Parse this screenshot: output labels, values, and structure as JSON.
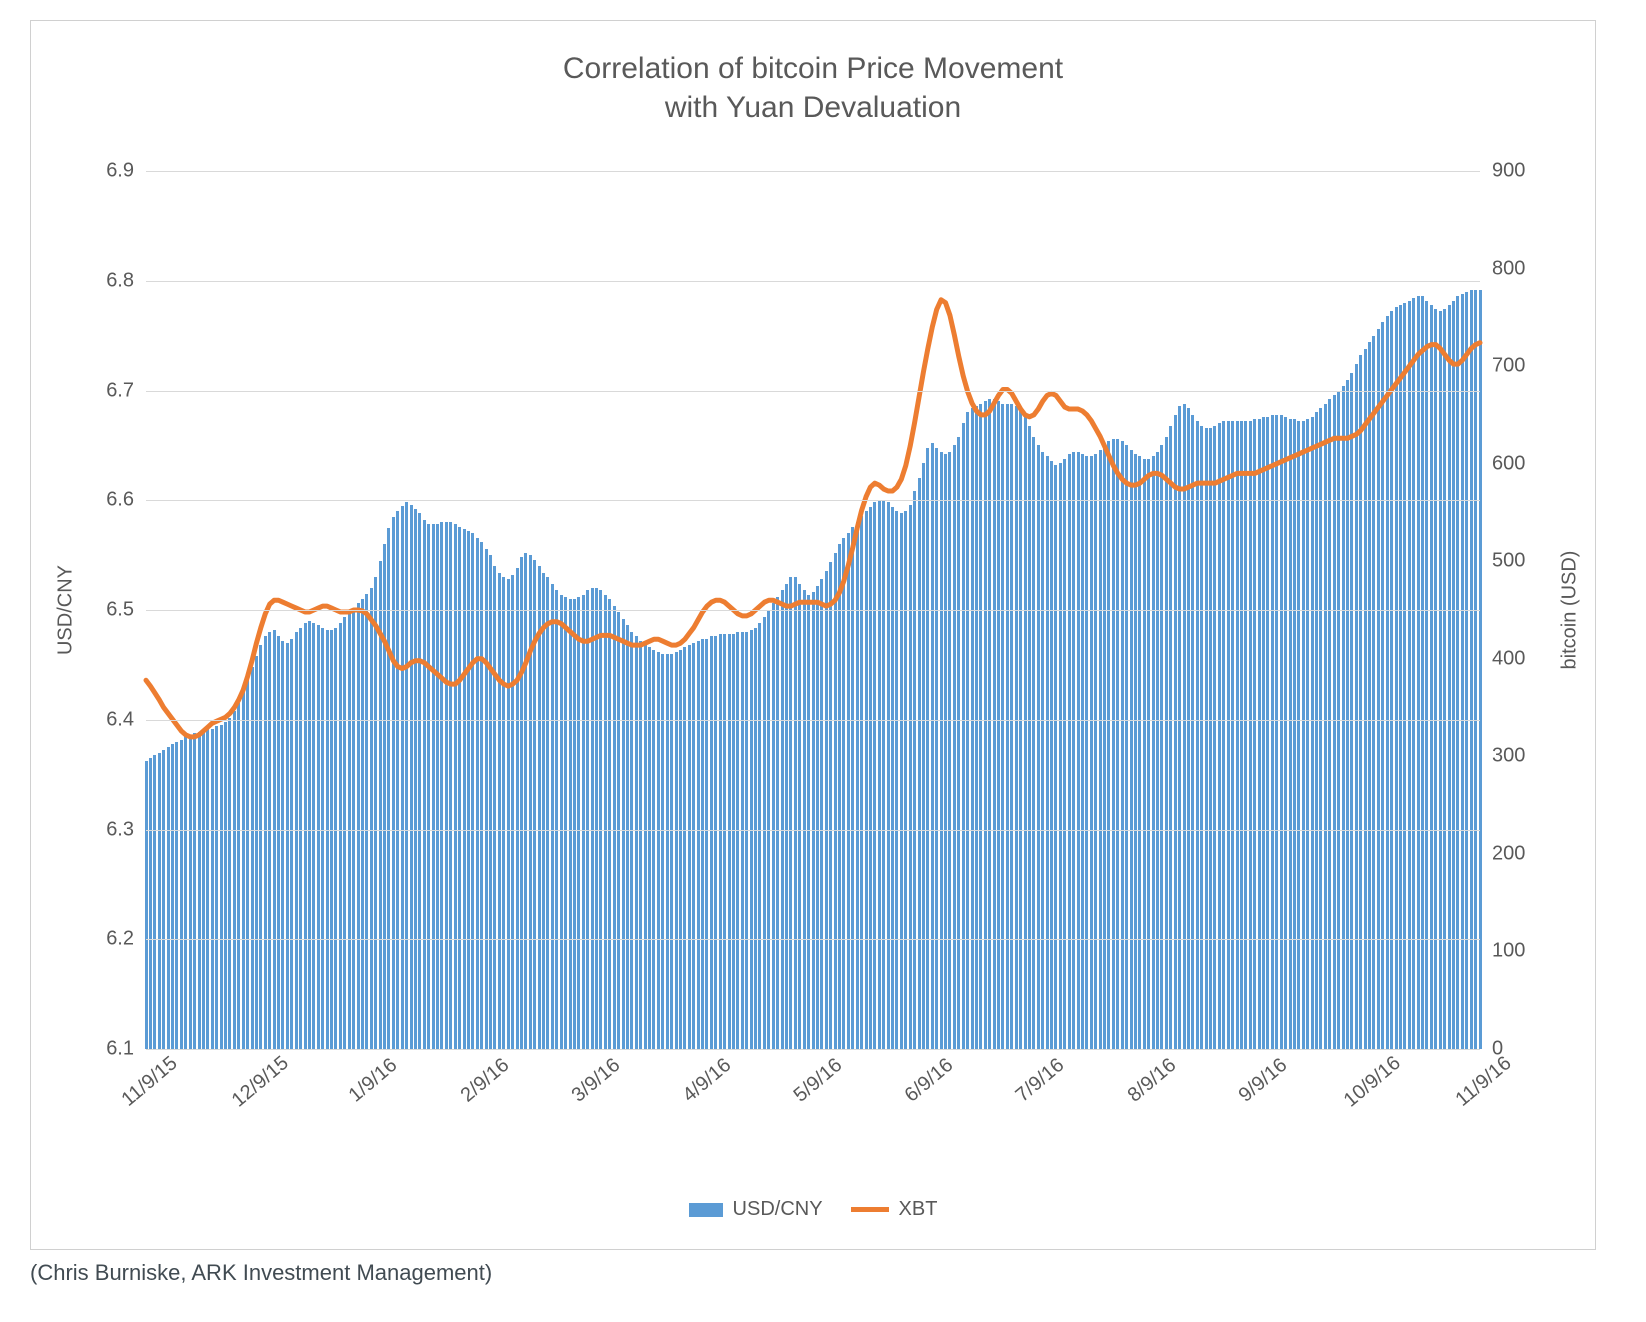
{
  "chart": {
    "type": "combo-bar-line",
    "title_line1": "Correlation of bitcoin Price Movement",
    "title_line2": "with Yuan Devaluation",
    "title_fontsize": 30,
    "title_color": "#595959",
    "background_color": "#ffffff",
    "frame_border_color": "#d0d0d0",
    "grid_color": "#d9d9d9",
    "tick_font_color": "#595959",
    "tick_fontsize": 20,
    "left_axis": {
      "title": "USD/CNY",
      "min": 6.1,
      "max": 6.9,
      "step": 0.1,
      "ticks": [
        "6.1",
        "6.2",
        "6.3",
        "6.4",
        "6.5",
        "6.6",
        "6.7",
        "6.8",
        "6.9"
      ]
    },
    "right_axis": {
      "title": "bitcoin (USD)",
      "min": 0,
      "max": 900,
      "step": 100,
      "ticks": [
        "0",
        "100",
        "200",
        "300",
        "400",
        "500",
        "600",
        "700",
        "800",
        "900"
      ]
    },
    "x_axis": {
      "categories": [
        "11/9/15",
        "12/9/15",
        "1/9/16",
        "2/9/16",
        "3/9/16",
        "4/9/16",
        "5/9/16",
        "6/9/16",
        "7/9/16",
        "8/9/16",
        "9/9/16",
        "10/9/16",
        "11/9/16"
      ],
      "label_rotation_deg": -40
    },
    "series_bar": {
      "name": "USD/CNY",
      "color": "#5b9bd5",
      "axis": "left",
      "values": [
        6.362,
        6.365,
        6.368,
        6.37,
        6.372,
        6.375,
        6.378,
        6.38,
        6.382,
        6.385,
        6.386,
        6.388,
        6.389,
        6.39,
        6.392,
        6.392,
        6.394,
        6.395,
        6.398,
        6.402,
        6.408,
        6.415,
        6.425,
        6.438,
        6.448,
        6.458,
        6.468,
        6.476,
        6.48,
        6.482,
        6.476,
        6.472,
        6.47,
        6.474,
        6.48,
        6.484,
        6.488,
        6.49,
        6.488,
        6.486,
        6.484,
        6.482,
        6.482,
        6.484,
        6.488,
        6.494,
        6.498,
        6.502,
        6.506,
        6.51,
        6.515,
        6.52,
        6.53,
        6.545,
        6.56,
        6.575,
        6.585,
        6.59,
        6.595,
        6.598,
        6.596,
        6.592,
        6.588,
        6.582,
        6.578,
        6.578,
        6.578,
        6.58,
        6.58,
        6.58,
        6.578,
        6.576,
        6.574,
        6.572,
        6.57,
        6.566,
        6.562,
        6.556,
        6.55,
        6.54,
        6.534,
        6.53,
        6.528,
        6.532,
        6.538,
        6.548,
        6.552,
        6.55,
        6.546,
        6.54,
        6.534,
        6.53,
        6.524,
        6.518,
        6.514,
        6.512,
        6.51,
        6.51,
        6.512,
        6.514,
        6.518,
        6.52,
        6.52,
        6.518,
        6.514,
        6.51,
        6.504,
        6.498,
        6.492,
        6.486,
        6.48,
        6.476,
        6.472,
        6.468,
        6.466,
        6.464,
        6.462,
        6.46,
        6.46,
        6.46,
        6.462,
        6.464,
        6.466,
        6.468,
        6.47,
        6.472,
        6.474,
        6.474,
        6.476,
        6.476,
        6.478,
        6.478,
        6.478,
        6.478,
        6.48,
        6.48,
        6.48,
        6.482,
        6.484,
        6.488,
        6.494,
        6.5,
        6.506,
        6.512,
        6.518,
        6.524,
        6.53,
        6.53,
        6.524,
        6.518,
        6.514,
        6.516,
        6.522,
        6.528,
        6.536,
        6.544,
        6.552,
        6.56,
        6.566,
        6.57,
        6.576,
        6.58,
        6.586,
        6.59,
        6.594,
        6.598,
        6.6,
        6.6,
        6.598,
        6.594,
        6.59,
        6.588,
        6.59,
        6.596,
        6.608,
        6.62,
        6.634,
        6.648,
        6.652,
        6.648,
        6.644,
        6.642,
        6.644,
        6.65,
        6.658,
        6.67,
        6.68,
        6.684,
        6.686,
        6.688,
        6.69,
        6.692,
        6.692,
        6.69,
        6.688,
        6.688,
        6.688,
        6.686,
        6.682,
        6.676,
        6.668,
        6.658,
        6.65,
        6.644,
        6.64,
        6.636,
        6.632,
        6.634,
        6.638,
        6.642,
        6.644,
        6.644,
        6.642,
        6.64,
        6.64,
        6.642,
        6.646,
        6.65,
        6.654,
        6.656,
        6.656,
        6.654,
        6.65,
        6.646,
        6.642,
        6.64,
        6.638,
        6.638,
        6.64,
        6.644,
        6.65,
        6.658,
        6.668,
        6.678,
        6.686,
        6.688,
        6.684,
        6.678,
        6.672,
        6.668,
        6.666,
        6.666,
        6.668,
        6.67,
        6.672,
        6.672,
        6.672,
        6.672,
        6.672,
        6.672,
        6.672,
        6.674,
        6.674,
        6.676,
        6.676,
        6.678,
        6.678,
        6.678,
        6.676,
        6.674,
        6.674,
        6.672,
        6.672,
        6.674,
        6.676,
        6.68,
        6.684,
        6.688,
        6.692,
        6.696,
        6.7,
        6.704,
        6.71,
        6.716,
        6.724,
        6.732,
        6.738,
        6.744,
        6.75,
        6.756,
        6.762,
        6.768,
        6.772,
        6.776,
        6.778,
        6.78,
        6.782,
        6.784,
        6.786,
        6.786,
        6.782,
        6.778,
        6.774,
        6.772,
        6.774,
        6.778,
        6.782,
        6.786,
        6.788,
        6.79,
        6.792,
        6.792,
        6.792
      ]
    },
    "series_line": {
      "name": "XBT",
      "color": "#ed7d31",
      "axis": "right",
      "line_width": 5,
      "values": [
        378,
        372,
        365,
        358,
        350,
        344,
        338,
        332,
        326,
        322,
        320,
        320,
        322,
        326,
        330,
        334,
        336,
        338,
        340,
        344,
        350,
        358,
        368,
        382,
        398,
        416,
        432,
        446,
        456,
        460,
        460,
        458,
        456,
        454,
        452,
        450,
        448,
        448,
        450,
        452,
        454,
        454,
        452,
        450,
        448,
        448,
        448,
        450,
        450,
        449,
        446,
        440,
        434,
        426,
        418,
        408,
        398,
        392,
        390,
        392,
        396,
        398,
        398,
        396,
        392,
        388,
        384,
        380,
        376,
        374,
        374,
        378,
        384,
        390,
        396,
        400,
        400,
        396,
        390,
        384,
        378,
        374,
        372,
        374,
        378,
        386,
        396,
        408,
        418,
        426,
        432,
        436,
        438,
        438,
        436,
        432,
        428,
        424,
        420,
        418,
        418,
        420,
        422,
        424,
        424,
        424,
        422,
        420,
        418,
        416,
        414,
        414,
        414,
        416,
        418,
        420,
        420,
        418,
        416,
        414,
        414,
        416,
        420,
        426,
        432,
        440,
        448,
        454,
        458,
        460,
        460,
        458,
        454,
        450,
        446,
        444,
        444,
        446,
        450,
        454,
        458,
        460,
        460,
        458,
        456,
        454,
        454,
        456,
        458,
        458,
        458,
        458,
        458,
        456,
        454,
        456,
        460,
        468,
        480,
        496,
        514,
        534,
        552,
        566,
        576,
        580,
        578,
        574,
        572,
        572,
        576,
        584,
        598,
        618,
        642,
        668,
        694,
        718,
        740,
        758,
        768,
        765,
        752,
        732,
        710,
        690,
        674,
        662,
        654,
        650,
        650,
        654,
        662,
        670,
        676,
        676,
        672,
        664,
        656,
        650,
        648,
        650,
        656,
        664,
        670,
        672,
        670,
        664,
        658,
        656,
        656,
        656,
        654,
        650,
        644,
        636,
        628,
        618,
        608,
        598,
        590,
        584,
        580,
        578,
        578,
        580,
        584,
        588,
        590,
        590,
        588,
        584,
        580,
        576,
        574,
        574,
        576,
        578,
        580,
        580,
        580,
        580,
        580,
        582,
        584,
        586,
        588,
        590,
        590,
        590,
        590,
        590,
        592,
        594,
        596,
        598,
        600,
        602,
        604,
        606,
        608,
        610,
        612,
        614,
        616,
        618,
        620,
        622,
        624,
        626,
        626,
        626,
        626,
        628,
        630,
        634,
        640,
        646,
        652,
        658,
        664,
        670,
        676,
        682,
        688,
        694,
        700,
        706,
        712,
        716,
        720,
        722,
        722,
        718,
        712,
        706,
        702,
        702,
        706,
        712,
        718,
        722,
        724
      ]
    },
    "legend": {
      "items": [
        {
          "key": "bar",
          "label": "USD/CNY"
        },
        {
          "key": "line",
          "label": "XBT"
        }
      ]
    },
    "attribution": "(Chris Burniske, ARK Investment Management)",
    "attribution_color": "#414b52",
    "attribution_fontsize": 22
  }
}
